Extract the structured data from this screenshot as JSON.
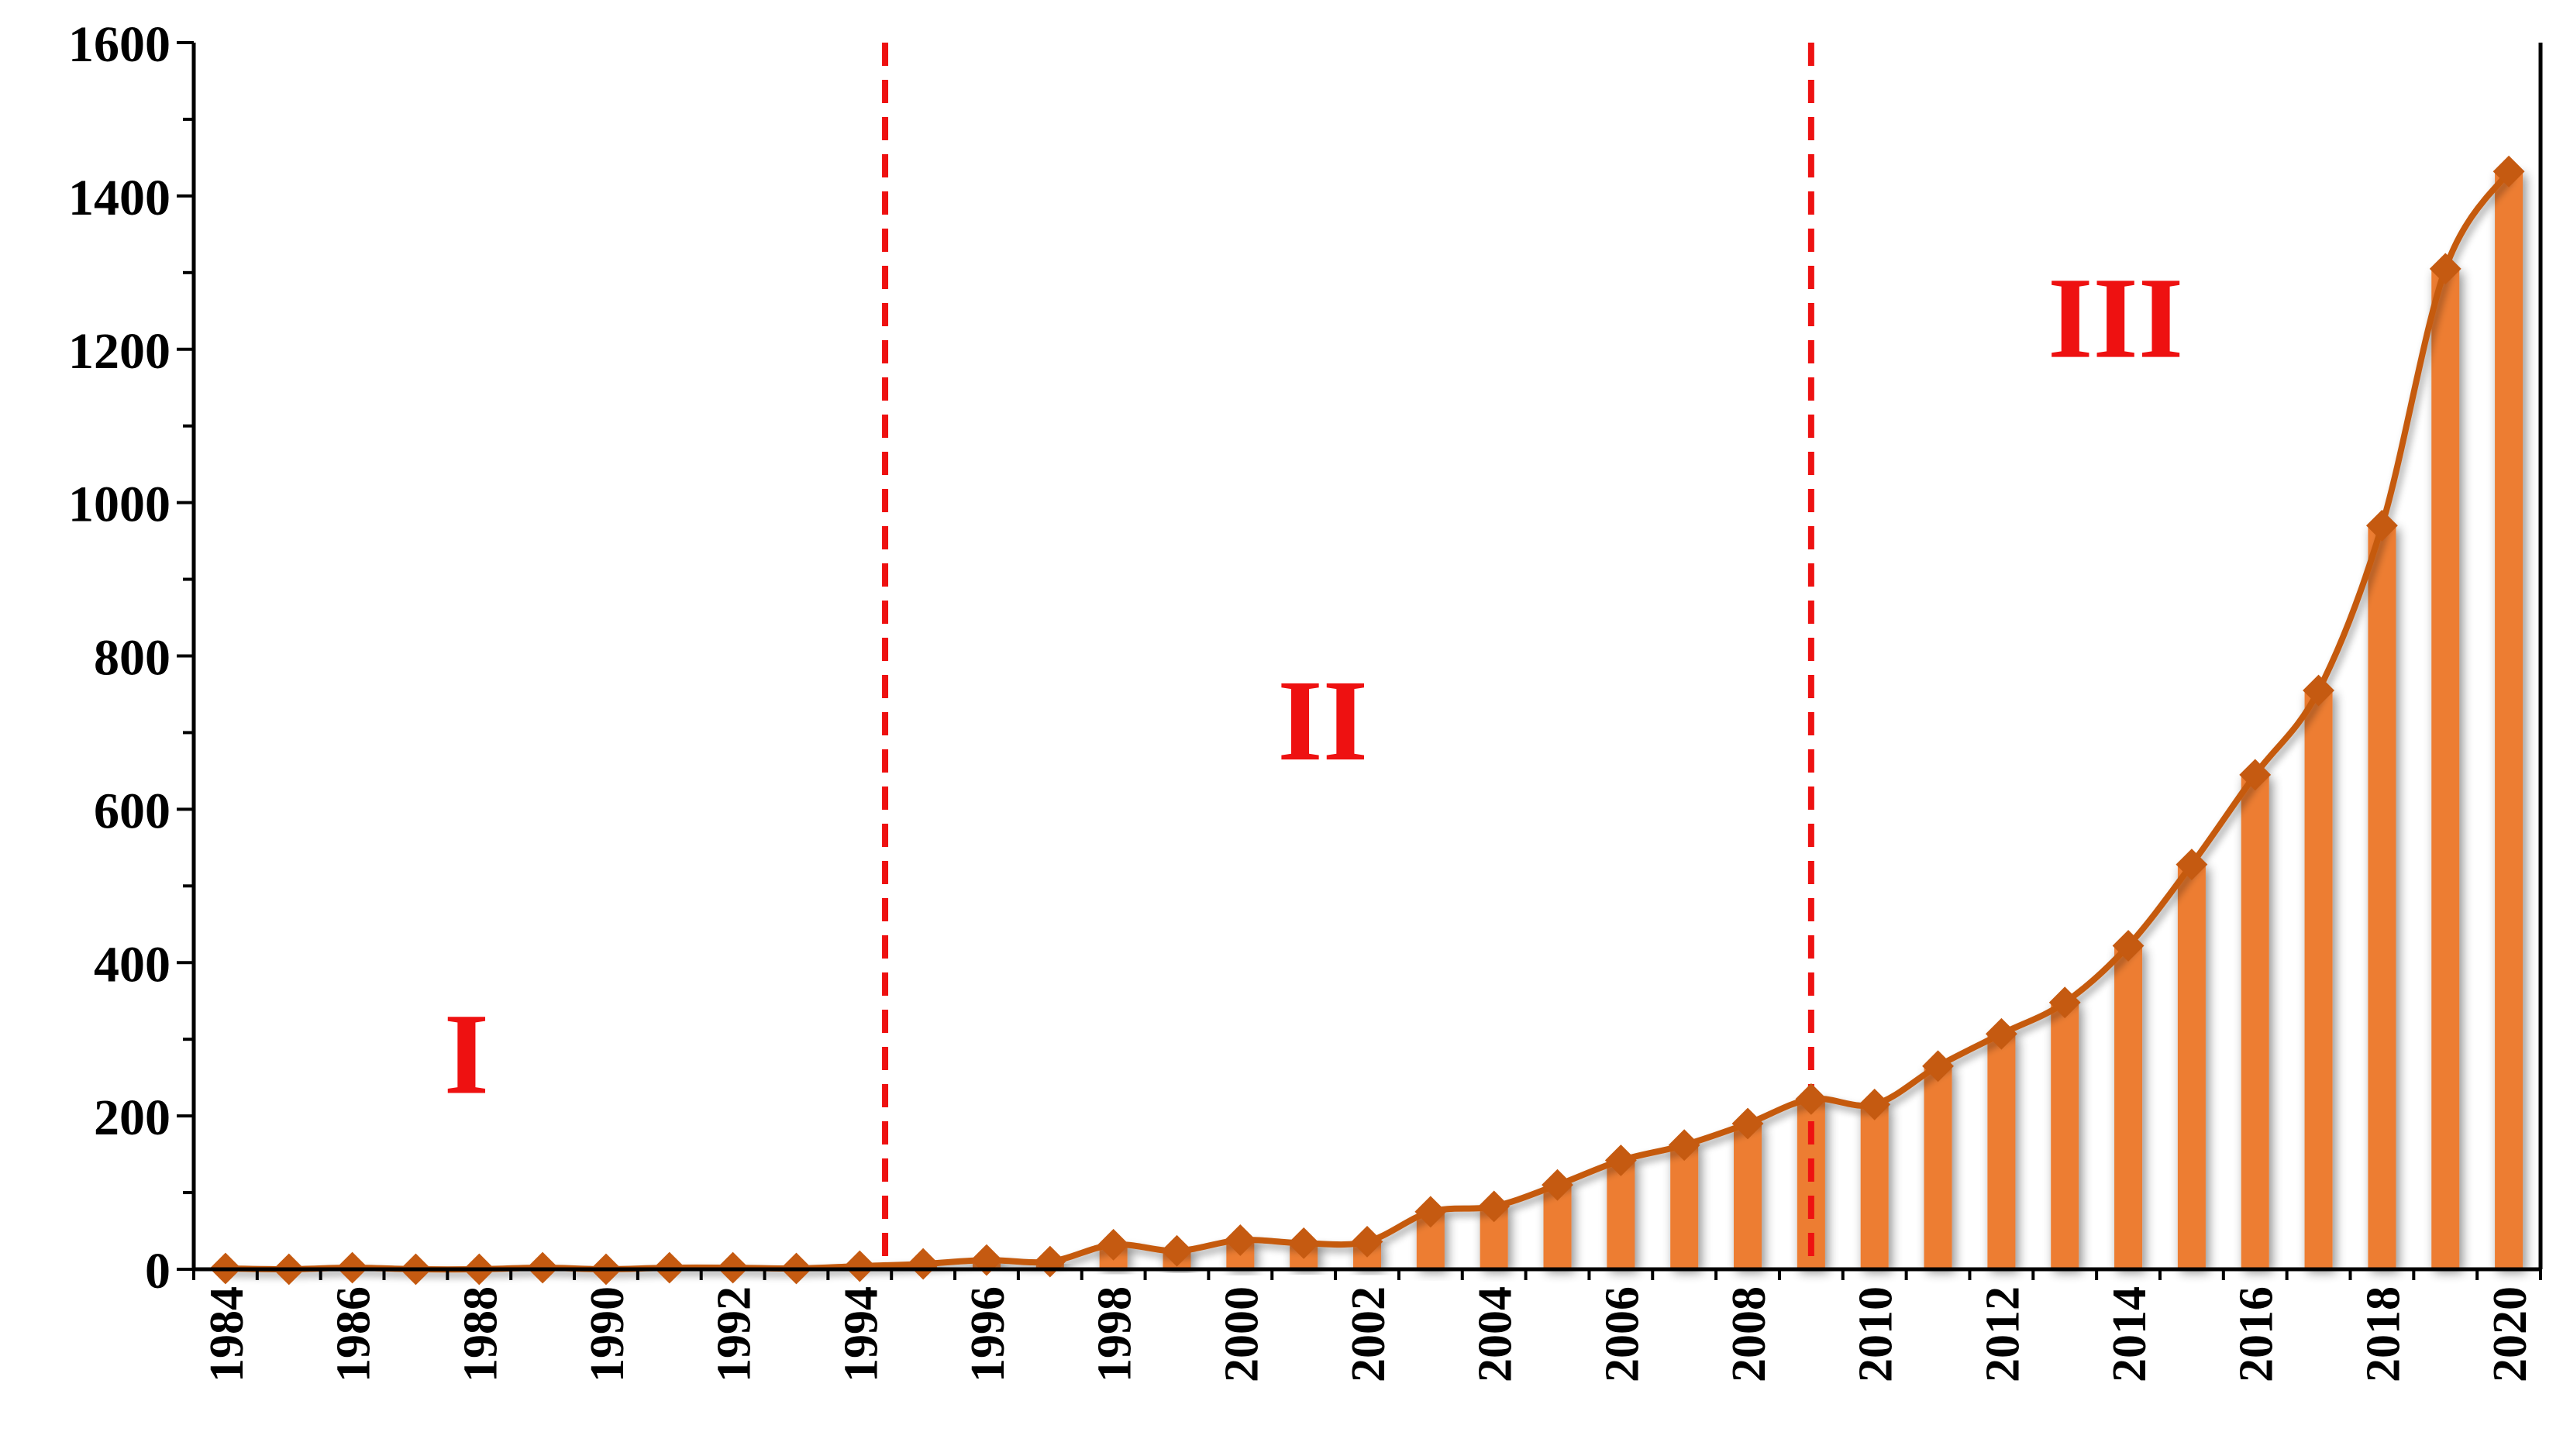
{
  "chart_data": {
    "type": "bar",
    "title": "",
    "xlabel": "",
    "ylabel": "",
    "years": [
      1984,
      1985,
      1986,
      1987,
      1988,
      1989,
      1990,
      1991,
      1992,
      1993,
      1994,
      1995,
      1996,
      1997,
      1998,
      1999,
      2000,
      2001,
      2002,
      2003,
      2004,
      2005,
      2006,
      2007,
      2008,
      2009,
      2010,
      2011,
      2012,
      2013,
      2014,
      2015,
      2016,
      2017,
      2018,
      2019,
      2020
    ],
    "values": [
      1,
      0,
      2,
      0,
      0,
      2,
      0,
      2,
      2,
      1,
      4,
      7,
      12,
      10,
      32,
      24,
      38,
      34,
      36,
      75,
      82,
      110,
      142,
      162,
      190,
      222,
      215,
      265,
      307,
      348,
      422,
      528,
      645,
      755,
      970,
      1305,
      1432
    ],
    "x_tick_labels": [
      "1984",
      "1986",
      "1988",
      "1990",
      "1992",
      "1994",
      "1996",
      "1998",
      "2000",
      "2002",
      "2004",
      "2006",
      "2008",
      "2010",
      "2012",
      "2014",
      "2016",
      "2018",
      "2020"
    ],
    "y_tick_labels": [
      "0",
      "200",
      "400",
      "600",
      "800",
      "1000",
      "1200",
      "1400",
      "1600"
    ],
    "ylim": [
      0,
      1600
    ],
    "y_major_step": 200,
    "y_minor_step": 100,
    "stage_boundaries": [
      1994.4,
      2009
    ],
    "stages": [
      {
        "label": "I",
        "anchor_year": 1987.8,
        "anchor_value": 230
      },
      {
        "label": "II",
        "anchor_year": 2001.3,
        "anchor_value": 665
      },
      {
        "label": "III",
        "anchor_year": 2013.8,
        "anchor_value": 1190
      }
    ],
    "grid": false,
    "legend": "none",
    "colors": {
      "bar": "#ed7d31",
      "line": "#c55a11",
      "marker": "#c55a11",
      "boundary": "#ee1111",
      "axis": "#000000"
    }
  }
}
